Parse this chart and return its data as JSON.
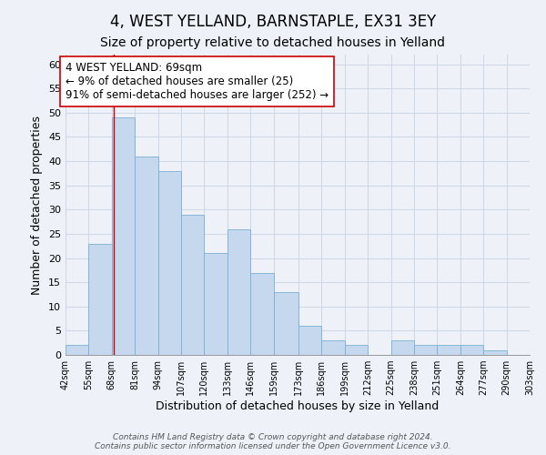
{
  "title": "4, WEST YELLAND, BARNSTAPLE, EX31 3EY",
  "subtitle": "Size of property relative to detached houses in Yelland",
  "xlabel": "Distribution of detached houses by size in Yelland",
  "ylabel": "Number of detached properties",
  "bin_edges": [
    42,
    55,
    68,
    81,
    94,
    107,
    120,
    133,
    146,
    159,
    173,
    186,
    199,
    212,
    225,
    238,
    251,
    264,
    277,
    290,
    303
  ],
  "bar_heights": [
    2,
    23,
    49,
    41,
    38,
    29,
    21,
    26,
    17,
    13,
    6,
    3,
    2,
    0,
    3,
    2,
    2,
    2,
    1,
    0
  ],
  "bar_color": "#c5d8ee",
  "bar_edge_color": "#7aafd4",
  "property_line_x": 69,
  "property_line_color": "#cc0000",
  "annotation_text": "4 WEST YELLAND: 69sqm\n← 9% of detached houses are smaller (25)\n91% of semi-detached houses are larger (252) →",
  "annotation_box_color": "#ffffff",
  "annotation_box_edge_color": "#cc0000",
  "ylim": [
    0,
    62
  ],
  "yticks": [
    0,
    5,
    10,
    15,
    20,
    25,
    30,
    35,
    40,
    45,
    50,
    55,
    60
  ],
  "tick_labels": [
    "42sqm",
    "55sqm",
    "68sqm",
    "81sqm",
    "94sqm",
    "107sqm",
    "120sqm",
    "133sqm",
    "146sqm",
    "159sqm",
    "173sqm",
    "186sqm",
    "199sqm",
    "212sqm",
    "225sqm",
    "238sqm",
    "251sqm",
    "264sqm",
    "277sqm",
    "290sqm",
    "303sqm"
  ],
  "footer_line1": "Contains HM Land Registry data © Crown copyright and database right 2024.",
  "footer_line2": "Contains public sector information licensed under the Open Government Licence v3.0.",
  "background_color": "#eef2f8",
  "grid_color": "#d0d8e8",
  "title_fontsize": 12,
  "subtitle_fontsize": 10,
  "axis_label_fontsize": 9,
  "tick_fontsize": 7,
  "annotation_fontsize": 8.5,
  "footer_fontsize": 6.5
}
